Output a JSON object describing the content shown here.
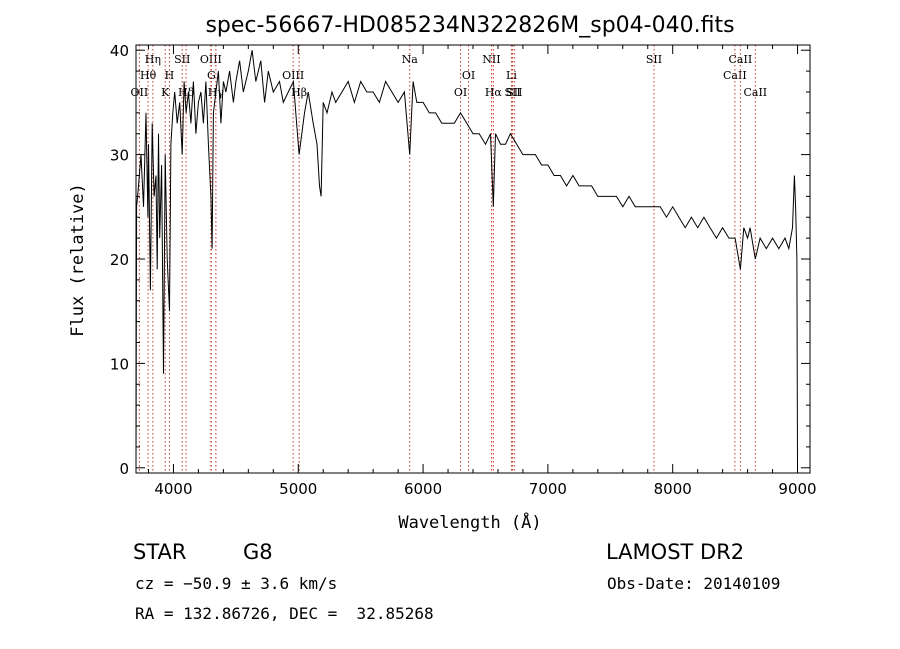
{
  "chart_data": {
    "type": "line",
    "title": "spec-56667-HD085234N322826M_sp04-040.fits",
    "xlabel": "Wavelength (Å)",
    "ylabel": "Flux (relative)",
    "xlim": [
      3700,
      9100
    ],
    "ylim": [
      -0.5,
      40.5
    ],
    "x_ticks": [
      4000,
      5000,
      6000,
      7000,
      8000,
      9000
    ],
    "y_ticks": [
      0,
      10,
      20,
      30,
      40
    ],
    "grid": false,
    "line_color": "#000000",
    "marker_color": "#c0392b",
    "series": [
      {
        "x": [
          3700,
          3705,
          3720,
          3740,
          3760,
          3780,
          3795,
          3800,
          3815,
          3830,
          3845,
          3860,
          3870,
          3880,
          3890,
          3905,
          3920,
          3934,
          3950,
          3968,
          3980,
          3995,
          4010,
          4030,
          4050,
          4070,
          4085,
          4101,
          4120,
          4140,
          4160,
          4180,
          4200,
          4220,
          4240,
          4260,
          4280,
          4300,
          4310,
          4320,
          4340,
          4360,
          4380,
          4400,
          4420,
          4450,
          4480,
          4500,
          4530,
          4560,
          4600,
          4630,
          4660,
          4700,
          4730,
          4760,
          4800,
          4850,
          4880,
          4920,
          4961,
          4980,
          5007,
          5050,
          5080,
          5120,
          5150,
          5170,
          5183,
          5200,
          5230,
          5270,
          5300,
          5350,
          5400,
          5450,
          5500,
          5550,
          5600,
          5650,
          5700,
          5750,
          5800,
          5850,
          5893,
          5920,
          5950,
          6000,
          6050,
          6100,
          6150,
          6200,
          6250,
          6300,
          6350,
          6400,
          6450,
          6500,
          6540,
          6563,
          6580,
          6620,
          6660,
          6700,
          6750,
          6800,
          6850,
          6900,
          6950,
          7000,
          7050,
          7100,
          7150,
          7200,
          7250,
          7300,
          7350,
          7400,
          7450,
          7500,
          7550,
          7600,
          7650,
          7700,
          7750,
          7800,
          7850,
          7900,
          7950,
          8000,
          8050,
          8100,
          8150,
          8200,
          8250,
          8300,
          8350,
          8400,
          8450,
          8500,
          8542,
          8570,
          8600,
          8620,
          8662,
          8700,
          8750,
          8800,
          8850,
          8900,
          8930,
          8960,
          8975,
          8985,
          8995,
          9000
        ],
        "y": [
          0,
          25,
          27,
          30,
          25,
          34,
          24,
          31,
          17,
          33,
          26,
          28,
          19,
          32,
          22,
          29,
          9,
          30,
          20,
          15,
          31,
          34,
          36,
          33,
          35,
          30,
          37,
          34,
          36,
          33,
          37,
          32,
          35,
          36,
          33,
          37,
          31,
          26,
          21,
          34,
          36,
          38,
          33,
          37,
          36,
          38,
          35,
          37,
          39,
          36,
          38,
          40,
          37,
          39,
          35,
          38,
          36,
          37,
          35,
          36,
          37,
          34,
          30,
          34,
          36,
          33,
          31,
          27,
          26,
          35,
          34,
          36,
          35,
          36,
          37,
          35,
          37,
          36,
          36,
          35,
          37,
          36,
          35,
          36,
          30,
          37,
          35,
          35,
          34,
          34,
          33,
          33,
          33,
          34,
          33,
          32,
          32,
          31,
          32,
          25,
          32,
          31,
          31,
          32,
          31,
          30,
          30,
          30,
          29,
          29,
          28,
          28,
          27,
          28,
          27,
          27,
          27,
          26,
          26,
          26,
          26,
          25,
          26,
          25,
          25,
          25,
          25,
          25,
          24,
          25,
          24,
          23,
          24,
          23,
          24,
          23,
          22,
          23,
          22,
          22,
          19,
          23,
          22,
          23,
          20,
          22,
          21,
          22,
          21,
          22,
          21,
          23,
          28,
          25,
          20,
          0
        ]
      }
    ],
    "line_markers": [
      {
        "label": "OII",
        "x": 3727,
        "row": 2
      },
      {
        "label": "Hθ",
        "x": 3797,
        "row": 1
      },
      {
        "label": "Hη",
        "x": 3835,
        "row": 0
      },
      {
        "label": "K",
        "x": 3934,
        "row": 2
      },
      {
        "label": "H",
        "x": 3968,
        "row": 1
      },
      {
        "label": "SII",
        "x": 4070,
        "row": 0
      },
      {
        "label": "Hδ",
        "x": 4101,
        "row": 2
      },
      {
        "label": "OIII",
        "x": 4300,
        "row": 0
      },
      {
        "label": "G",
        "x": 4304,
        "row": 1
      },
      {
        "label": "Hγ",
        "x": 4340,
        "row": 2
      },
      {
        "label": "OIII",
        "x": 4959,
        "row": 1
      },
      {
        "label": "Hβ",
        "x": 5007,
        "row": 2
      },
      {
        "label": "Na",
        "x": 5893,
        "row": 0
      },
      {
        "label": "OI",
        "x": 6300,
        "row": 2
      },
      {
        "label": "OI",
        "x": 6364,
        "row": 1
      },
      {
        "label": "NII",
        "x": 6548,
        "row": 0
      },
      {
        "label": "Hα",
        "x": 6563,
        "row": 2
      },
      {
        "label": "Li",
        "x": 6708,
        "row": 1
      },
      {
        "label": "SII",
        "x": 6717,
        "row": 2
      },
      {
        "label": "SII",
        "x": 6731,
        "row": 2
      },
      {
        "label": "SII",
        "x": 7850,
        "row": 0
      },
      {
        "label": "CaII",
        "x": 8498,
        "row": 1
      },
      {
        "label": "CaII",
        "x": 8542,
        "row": 0
      },
      {
        "label": "CaII",
        "x": 8662,
        "row": 2
      }
    ]
  },
  "info": {
    "object_class": "STAR",
    "subclass": "G8",
    "survey": "LAMOST DR2",
    "cz": "cz = −50.9 ± 3.6 km/s",
    "obs_date": "Obs-Date: 20140109",
    "radec": "RA = 132.86726, DEC =  32.85268"
  }
}
